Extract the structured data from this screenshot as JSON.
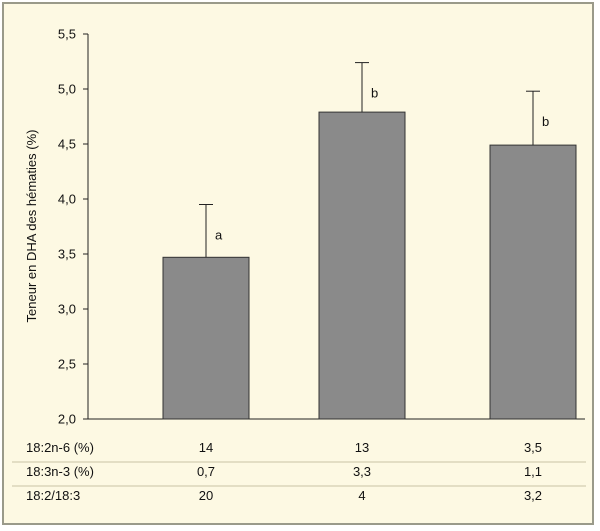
{
  "chart_data": {
    "type": "bar",
    "ylabel": "Teneur en DHA des hématies (%)",
    "ylim": [
      2.0,
      5.5
    ],
    "yticks": [
      "2,0",
      "2,5",
      "3,0",
      "3,5",
      "4,0",
      "4,5",
      "5,0",
      "5,5"
    ],
    "grid": false,
    "bar_color": "#8a8a8a",
    "values": [
      3.47,
      4.79,
      4.49
    ],
    "error_upper": [
      3.95,
      5.24,
      4.98
    ],
    "letters": [
      "a",
      "b",
      "b"
    ],
    "table": {
      "rows": [
        {
          "label": "18:2n-6 (%)",
          "cells": [
            "14",
            "13",
            "3,5"
          ]
        },
        {
          "label": "18:3n-3 (%)",
          "cells": [
            "0,7",
            "3,3",
            "1,1"
          ]
        },
        {
          "label": "18:2/18:3",
          "cells": [
            "20",
            "4",
            "3,2"
          ]
        }
      ]
    }
  }
}
